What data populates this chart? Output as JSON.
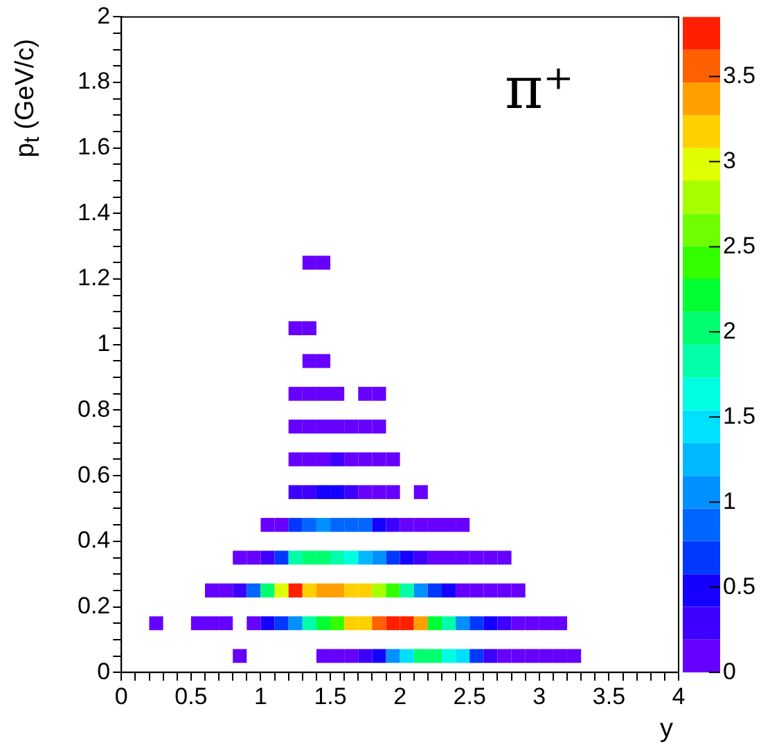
{
  "chart_data": {
    "type": "scatter",
    "marker": "square",
    "xlabel": "y",
    "ylabel": "p$_{t}$ (GeV/c)",
    "annotations": [
      "π⁺"
    ],
    "xlim": [
      0,
      4
    ],
    "ylim": [
      0,
      2
    ],
    "xticks": [
      0,
      {
        "value": 0.1,
        "label": null
      },
      {
        "value": 0.2,
        "label": null
      },
      {
        "value": 0.3,
        "label": null
      },
      {
        "value": 0.4,
        "label": null
      },
      0.5,
      {
        "value": 0.6,
        "label": null
      },
      {
        "value": 0.7,
        "label": null
      },
      {
        "value": 0.8,
        "label": null
      },
      {
        "value": 0.9,
        "label": null
      },
      1,
      {
        "value": 1.1,
        "label": null
      },
      {
        "value": 1.2,
        "label": null
      },
      {
        "value": 1.3,
        "label": null
      },
      {
        "value": 1.4,
        "label": null
      },
      1.5,
      {
        "value": 1.6,
        "label": null
      },
      {
        "value": 1.7,
        "label": null
      },
      {
        "value": 1.8,
        "label": null
      },
      {
        "value": 1.9,
        "label": null
      },
      2,
      {
        "value": 2.1,
        "label": null
      },
      {
        "value": 2.2,
        "label": null
      },
      {
        "value": 2.3,
        "label": null
      },
      {
        "value": 2.4,
        "label": null
      },
      2.5,
      {
        "value": 2.6,
        "label": null
      },
      {
        "value": 2.7,
        "label": null
      },
      {
        "value": 2.8,
        "label": null
      },
      {
        "value": 2.9,
        "label": null
      },
      3,
      {
        "value": 3.1,
        "label": null
      },
      {
        "value": 3.2,
        "label": null
      },
      {
        "value": 3.3,
        "label": null
      },
      {
        "value": 3.4,
        "label": null
      },
      3.5,
      {
        "value": 3.6,
        "label": null
      },
      {
        "value": 3.7,
        "label": null
      },
      {
        "value": 3.8,
        "label": null
      },
      {
        "value": 3.9,
        "label": null
      },
      4
    ],
    "yticks": [
      0,
      {
        "value": 0.05,
        "label": null
      },
      {
        "value": 0.1,
        "label": null
      },
      {
        "value": 0.15,
        "label": null
      },
      0.2,
      {
        "value": 0.25,
        "label": null
      },
      {
        "value": 0.3,
        "label": null
      },
      {
        "value": 0.35,
        "label": null
      },
      0.4,
      {
        "value": 0.45,
        "label": null
      },
      {
        "value": 0.5,
        "label": null
      },
      {
        "value": 0.55,
        "label": null
      },
      0.6,
      {
        "value": 0.65,
        "label": null
      },
      {
        "value": 0.7,
        "label": null
      },
      {
        "value": 0.75,
        "label": null
      },
      0.8,
      {
        "value": 0.85,
        "label": null
      },
      {
        "value": 0.9,
        "label": null
      },
      {
        "value": 0.95,
        "label": null
      },
      1,
      {
        "value": 1.05,
        "label": null
      },
      {
        "value": 1.1,
        "label": null
      },
      {
        "value": 1.15,
        "label": null
      },
      1.2,
      {
        "value": 1.25,
        "label": null
      },
      {
        "value": 1.3,
        "label": null
      },
      {
        "value": 1.35,
        "label": null
      },
      1.4,
      {
        "value": 1.45,
        "label": null
      },
      {
        "value": 1.5,
        "label": null
      },
      {
        "value": 1.55,
        "label": null
      },
      1.6,
      {
        "value": 1.65,
        "label": null
      },
      {
        "value": 1.7,
        "label": null
      },
      {
        "value": 1.75,
        "label": null
      },
      1.8,
      {
        "value": 1.85,
        "label": null
      },
      {
        "value": 1.9,
        "label": null
      },
      {
        "value": 1.95,
        "label": null
      },
      2
    ],
    "clim": [
      0,
      3.85
    ],
    "cticks": [
      0,
      0.5,
      1,
      1.5,
      2,
      2.5,
      3,
      3.5
    ],
    "x": [
      1.35,
      1.45,
      1.25,
      1.35,
      1.35,
      1.45,
      1.25,
      1.35,
      1.45,
      1.55,
      1.75,
      1.85,
      1.25,
      1.35,
      1.45,
      1.55,
      1.65,
      1.75,
      1.85,
      1.25,
      1.35,
      1.45,
      1.55,
      1.65,
      1.75,
      1.85,
      1.95,
      1.25,
      1.35,
      1.45,
      1.55,
      1.65,
      1.75,
      1.85,
      1.95,
      2.15,
      1.05,
      1.15,
      1.25,
      1.35,
      1.45,
      1.55,
      1.65,
      1.75,
      1.85,
      1.95,
      2.05,
      2.15,
      2.25,
      2.35,
      2.45,
      0.85,
      0.95,
      1.05,
      1.15,
      1.25,
      1.35,
      1.45,
      1.55,
      1.65,
      1.75,
      1.85,
      1.95,
      2.05,
      2.15,
      2.25,
      2.35,
      2.45,
      2.55,
      2.65,
      2.75,
      0.65,
      0.75,
      0.85,
      0.95,
      1.05,
      1.15,
      1.25,
      1.35,
      1.45,
      1.55,
      1.65,
      1.75,
      1.85,
      1.95,
      2.05,
      2.15,
      2.25,
      2.35,
      2.45,
      2.55,
      2.65,
      2.75,
      2.85,
      0.25,
      0.55,
      0.65,
      0.75,
      0.95,
      1.05,
      1.15,
      1.25,
      1.35,
      1.45,
      1.55,
      1.65,
      1.75,
      1.85,
      1.95,
      2.05,
      2.15,
      2.25,
      2.35,
      2.45,
      2.55,
      2.65,
      2.75,
      2.85,
      2.95,
      3.05,
      3.15,
      0.85,
      1.45,
      1.55,
      1.65,
      1.75,
      1.85,
      1.95,
      2.05,
      2.15,
      2.25,
      2.35,
      2.45,
      2.55,
      2.65,
      2.75,
      2.85,
      2.95,
      3.05,
      3.15,
      3.25
    ],
    "values": [
      1.25,
      1.25,
      1.05,
      1.05,
      0.95,
      0.95,
      0.85,
      0.85,
      0.85,
      0.85,
      0.85,
      0.85,
      0.75,
      0.75,
      0.75,
      0.75,
      0.75,
      0.75,
      0.75,
      0.65,
      0.65,
      0.65,
      0.65,
      0.65,
      0.65,
      0.65,
      0.65,
      0.55,
      0.55,
      0.55,
      0.55,
      0.55,
      0.55,
      0.55,
      0.55,
      0.55,
      0.45,
      0.45,
      0.45,
      0.45,
      0.45,
      0.45,
      0.45,
      0.45,
      0.45,
      0.45,
      0.45,
      0.45,
      0.45,
      0.45,
      0.45,
      0.35,
      0.35,
      0.35,
      0.35,
      0.35,
      0.35,
      0.35,
      0.35,
      0.35,
      0.35,
      0.35,
      0.35,
      0.35,
      0.35,
      0.35,
      0.35,
      0.35,
      0.35,
      0.35,
      0.35,
      0.25,
      0.25,
      0.25,
      0.25,
      0.25,
      0.25,
      0.25,
      0.25,
      0.25,
      0.25,
      0.25,
      0.25,
      0.25,
      0.25,
      0.25,
      0.25,
      0.25,
      0.25,
      0.25,
      0.25,
      0.25,
      0.25,
      0.25,
      0.15,
      0.15,
      0.15,
      0.15,
      0.15,
      0.15,
      0.15,
      0.15,
      0.15,
      0.15,
      0.15,
      0.15,
      0.15,
      0.15,
      0.15,
      0.15,
      0.15,
      0.15,
      0.15,
      0.15,
      0.15,
      0.15,
      0.15,
      0.15,
      0.15,
      0.15,
      0.15,
      0.05,
      0.05,
      0.05,
      0.05,
      0.05,
      0.05,
      0.05,
      0.05,
      0.05,
      0.05,
      0.05,
      0.05,
      0.05,
      0.05,
      0.05,
      0.05,
      0.05,
      0.05,
      0.05,
      0.05
    ],
    "cvalues": [
      0.1,
      0.1,
      0.1,
      0.1,
      0.1,
      0.1,
      0.1,
      0.1,
      0.1,
      0.1,
      0.1,
      0.1,
      0.1,
      0.1,
      0.1,
      0.1,
      0.1,
      0.1,
      0.1,
      0.1,
      0.1,
      0.1,
      0.3,
      0.1,
      0.1,
      0.1,
      0.1,
      0.3,
      0.3,
      0.5,
      0.5,
      0.3,
      0.1,
      0.1,
      0.1,
      0.1,
      0.1,
      0.1,
      0.7,
      0.9,
      1.1,
      0.9,
      0.9,
      0.8,
      0.5,
      0.3,
      0.1,
      0.1,
      0.1,
      0.1,
      0.1,
      0.1,
      0.1,
      0.3,
      0.7,
      1.8,
      2.1,
      2.1,
      1.8,
      1.6,
      1.3,
      1,
      0.6,
      0.5,
      0.3,
      0.1,
      0.1,
      0.1,
      0.1,
      0.1,
      0.1,
      0.1,
      0.1,
      0.3,
      0.9,
      2.1,
      3,
      3.7,
      3.2,
      3.4,
      3.3,
      3.2,
      3.2,
      2.7,
      2.5,
      1.8,
      1.1,
      0.7,
      0.5,
      0.1,
      0.1,
      0.1,
      0.1,
      0.1,
      0.1,
      0.1,
      0.1,
      0.1,
      0.1,
      0.5,
      0.7,
      1.1,
      1.8,
      2.2,
      2.5,
      3.2,
      3.1,
      3.6,
      3.75,
      3.75,
      3.3,
      2.2,
      1.9,
      1.1,
      0.7,
      0.5,
      0.3,
      0.1,
      0.1,
      0.1,
      0.1,
      0.1,
      0.1,
      0.1,
      0.1,
      0.3,
      0.5,
      1.1,
      1.5,
      2.1,
      2,
      1.6,
      1.4,
      0.6,
      0.3,
      0.1,
      0.1,
      0.1,
      0.1,
      0.1,
      0.1
    ]
  }
}
